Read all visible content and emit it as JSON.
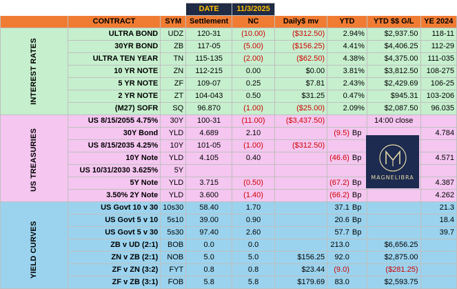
{
  "header": {
    "date_label": "DATE",
    "date_value": "11/3/2025",
    "columns": [
      "CONTRACT",
      "SYM",
      "Settlement",
      "NC",
      "Daily$ mv",
      "YTD",
      "YTD $$ G/L",
      "YE 2024"
    ]
  },
  "sections": {
    "interest_rates": "INTEREST RATES",
    "us_treasuries": "US TREASURIES",
    "yield_curves": "YIELD CURVES"
  },
  "interest_rates": [
    {
      "contract": "ULTRA BOND",
      "sym": "UDZ",
      "settlement": "120-31",
      "nc": "(10.00)",
      "daily": "($312.50)",
      "ytd": "2.94%",
      "ytd_gl": "$2,937.50",
      "ye": "118-11"
    },
    {
      "contract": "30YR BOND",
      "sym": "ZB",
      "settlement": "117-05",
      "nc": "(5.00)",
      "daily": "($156.25)",
      "ytd": "4.41%",
      "ytd_gl": "$4,406.25",
      "ye": "112-29"
    },
    {
      "contract": "ULTRA TEN YEAR",
      "sym": "TN",
      "settlement": "115-135",
      "nc": "(2.00)",
      "daily": "($62.50)",
      "ytd": "4.38%",
      "ytd_gl": "$4,375.00",
      "ye": "111-035"
    },
    {
      "contract": "10 YR NOTE",
      "sym": "ZN",
      "settlement": "112-215",
      "nc": "0.00",
      "daily": "$0.00",
      "ytd": "3.81%",
      "ytd_gl": "$3,812.50",
      "ye": "108-275"
    },
    {
      "contract": "5 YR NOTE",
      "sym": "ZF",
      "settlement": "109-07",
      "nc": "0.25",
      "daily": "$7.81",
      "ytd": "2.43%",
      "ytd_gl": "$2,429.69",
      "ye": "106-25"
    },
    {
      "contract": "2 YR NOTE",
      "sym": "ZT",
      "settlement": "104-043",
      "nc": "0.50",
      "daily": "$31.25",
      "ytd": "0.47%",
      "ytd_gl": "$945.31",
      "ye": "103-206"
    },
    {
      "contract": "(M27) SOFR",
      "sym": "SQ",
      "settlement": "96.870",
      "nc": "(1.00)",
      "daily": "($25.00)",
      "ytd": "2.09%",
      "ytd_gl": "$2,087.50",
      "ye": "96.035"
    }
  ],
  "us_treasuries": [
    {
      "contract": "US 8/15/2055 4.75%",
      "sym": "30Y",
      "settlement": "100-31",
      "nc": "(11.00)",
      "daily": "($3,437.50)",
      "ytd": "",
      "bp": "",
      "ytd_gl": "14:00 close",
      "ye": ""
    },
    {
      "contract": "30Y Bond",
      "sym": "YLD",
      "settlement": "4.689",
      "nc": "2.10",
      "daily": "",
      "ytd": "(9.5)",
      "bp": "Bp",
      "ytd_gl": "",
      "ye": "4.784"
    },
    {
      "contract": "US 8/15/2035 4.25%",
      "sym": "10Y",
      "settlement": "101-05",
      "nc": "(1.00)",
      "daily": "($312.50)",
      "ytd": "",
      "bp": "",
      "ytd_gl": "",
      "ye": ""
    },
    {
      "contract": "10Y Note",
      "sym": "YLD",
      "settlement": "4.105",
      "nc": "0.40",
      "daily": "",
      "ytd": "(46.6)",
      "bp": "Bp",
      "ytd_gl": "",
      "ye": "4.571"
    },
    {
      "contract": "US 10/31/2030 3.625%",
      "sym": "5Y",
      "settlement": "",
      "nc": "",
      "daily": "",
      "ytd": "",
      "bp": "",
      "ytd_gl": "",
      "ye": ""
    },
    {
      "contract": "5Y  Note",
      "sym": "YLD",
      "settlement": "3.715",
      "nc": "(0.50)",
      "daily": "",
      "ytd": "(67.2)",
      "bp": "Bp",
      "ytd_gl": "",
      "ye": "4.387"
    },
    {
      "contract": "3.50% 2Y Note",
      "sym": "YLD",
      "settlement": "3.600",
      "nc": "(1.40)",
      "daily": "",
      "ytd": "(66.2)",
      "bp": "Bp",
      "ytd_gl": "",
      "ye": "4.262"
    }
  ],
  "yield_curves": [
    {
      "contract": "US Govt 10 v 30",
      "sym": "10s30",
      "settlement": "58.40",
      "nc": "1.70",
      "daily": "",
      "ytd": "37.1",
      "bp": "Bp",
      "ytd_gl": "",
      "ye": "21.3"
    },
    {
      "contract": "US Govt 5 v 10",
      "sym": "5s10",
      "settlement": "39.00",
      "nc": "0.90",
      "daily": "",
      "ytd": "20.6",
      "bp": "Bp",
      "ytd_gl": "",
      "ye": "18.4"
    },
    {
      "contract": "US Govt 5 v 30",
      "sym": "5s30",
      "settlement": "97.40",
      "nc": "2.60",
      "daily": "",
      "ytd": "57.7",
      "bp": "Bp",
      "ytd_gl": "",
      "ye": "39.7"
    },
    {
      "contract": "ZB v UD (2:1)",
      "sym": "BOB",
      "settlement": "0.0",
      "nc": "0.0",
      "daily": "",
      "ytd": "213.0",
      "bp": "",
      "ytd_gl": "$6,656.25",
      "ye": ""
    },
    {
      "contract": "ZN v ZB (2:1)",
      "sym": "NOB",
      "settlement": "5.0",
      "nc": "5.0",
      "daily": "$156.25",
      "ytd": "92.0",
      "bp": "",
      "ytd_gl": "$2,875.00",
      "ye": ""
    },
    {
      "contract": "ZF v ZN (3:2)",
      "sym": "FYT",
      "settlement": "0.8",
      "nc": "0.8",
      "daily": "$23.44",
      "ytd": "(9.0)",
      "bp": "",
      "ytd_gl": "($281.25)",
      "ye": ""
    },
    {
      "contract": "ZF v ZB (3:1)",
      "sym": "FOB",
      "settlement": "5.8",
      "nc": "5.8",
      "daily": "$179.69",
      "ytd": "83.0",
      "bp": "",
      "ytd_gl": "$2,593.75",
      "ye": ""
    }
  ],
  "logo": {
    "word": "MAGNELIBRA",
    "monogram": "M",
    "bg": "#1c2b4f",
    "gold": "#e7d8a8"
  },
  "colors": {
    "green": "#c6efce",
    "pink": "#f4c6f0",
    "blue": "#9bd3ee",
    "orange": "#f07c33",
    "navy": "#1f2a44",
    "gold": "#ffc000",
    "neg": "#d00000"
  }
}
